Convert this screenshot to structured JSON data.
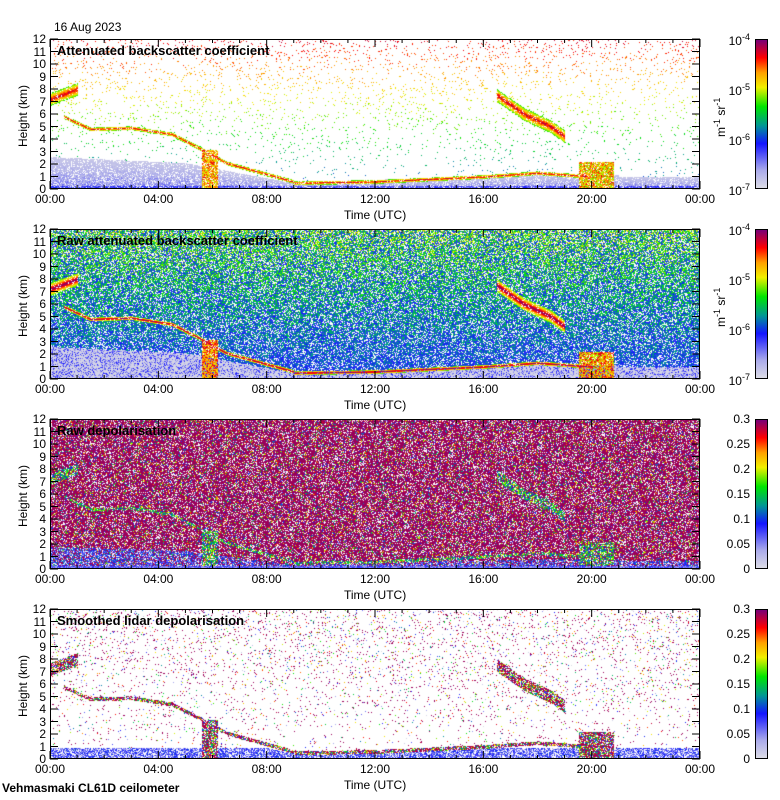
{
  "date": "16 Aug 2023",
  "footer": "Vehmasmaki CL61D ceilometer",
  "colors": {
    "frame": "#000000"
  },
  "chart_data": [
    {
      "type": "heatmap",
      "title": "Attenuated backscatter coefficient",
      "xlabel": "Time (UTC)",
      "ylabel": "Height (km)",
      "x_ticks": [
        "00:00",
        "04:00",
        "08:00",
        "12:00",
        "16:00",
        "20:00",
        "00:00"
      ],
      "xlim_hours": [
        0,
        24
      ],
      "y_ticks": [
        "0",
        "1",
        "2",
        "3",
        "4",
        "5",
        "6",
        "7",
        "8",
        "9",
        "10",
        "11",
        "12"
      ],
      "ylim": [
        0,
        12
      ],
      "colorbar": {
        "scale": "log",
        "range": [
          1e-07,
          0.0001
        ],
        "ticks": [
          {
            "base": "10",
            "exp": "-4"
          },
          {
            "base": "10",
            "exp": "-5"
          },
          {
            "base": "10",
            "exp": "-6"
          },
          {
            "base": "10",
            "exp": "-7"
          }
        ],
        "unit_base1": "m",
        "unit_exp1": "-1",
        "unit_base2": " sr",
        "unit_exp2": "-1"
      },
      "mode": "backscatter",
      "noise": 0.04
    },
    {
      "type": "heatmap",
      "title": "Raw attenuated backscatter coefficient",
      "xlabel": "Time (UTC)",
      "ylabel": "Height (km)",
      "x_ticks": [
        "00:00",
        "04:00",
        "08:00",
        "12:00",
        "16:00",
        "20:00",
        "00:00"
      ],
      "xlim_hours": [
        0,
        24
      ],
      "y_ticks": [
        "0",
        "1",
        "2",
        "3",
        "4",
        "5",
        "6",
        "7",
        "8",
        "9",
        "10",
        "11",
        "12"
      ],
      "ylim": [
        0,
        12
      ],
      "colorbar": {
        "scale": "log",
        "range": [
          1e-07,
          0.0001
        ],
        "ticks": [
          {
            "base": "10",
            "exp": "-4"
          },
          {
            "base": "10",
            "exp": "-5"
          },
          {
            "base": "10",
            "exp": "-6"
          },
          {
            "base": "10",
            "exp": "-7"
          }
        ],
        "unit_base1": "m",
        "unit_exp1": "-1",
        "unit_base2": " sr",
        "unit_exp2": "-1"
      },
      "mode": "raw",
      "noise": 0.75
    },
    {
      "type": "heatmap",
      "title": "Raw depolarisation",
      "xlabel": "Time (UTC)",
      "ylabel": "Height (km)",
      "x_ticks": [
        "00:00",
        "04:00",
        "08:00",
        "12:00",
        "16:00",
        "20:00",
        "00:00"
      ],
      "xlim_hours": [
        0,
        24
      ],
      "y_ticks": [
        "0",
        "1",
        "2",
        "3",
        "4",
        "5",
        "6",
        "7",
        "8",
        "9",
        "10",
        "11",
        "12"
      ],
      "ylim": [
        0,
        12
      ],
      "colorbar": {
        "scale": "linear",
        "range": [
          0,
          0.3
        ],
        "ticks": [
          "0.3",
          "0.25",
          "0.2",
          "0.15",
          "0.1",
          "0.05",
          "0"
        ]
      },
      "mode": "depol",
      "noise": 0.85
    },
    {
      "type": "heatmap",
      "title": "Smoothed lidar depolarisation",
      "xlabel": "Time (UTC)",
      "ylabel": "Height (km)",
      "x_ticks": [
        "00:00",
        "04:00",
        "08:00",
        "12:00",
        "16:00",
        "20:00",
        "00:00"
      ],
      "xlim_hours": [
        0,
        24
      ],
      "y_ticks": [
        "0",
        "1",
        "2",
        "3",
        "4",
        "5",
        "6",
        "7",
        "8",
        "9",
        "10",
        "11",
        "12"
      ],
      "ylim": [
        0,
        12
      ],
      "colorbar": {
        "scale": "linear",
        "range": [
          0,
          0.3
        ],
        "ticks": [
          "0.3",
          "0.25",
          "0.2",
          "0.15",
          "0.1",
          "0.05",
          "0"
        ]
      },
      "mode": "sdepol",
      "noise": 0.06
    }
  ],
  "features": {
    "cloud_layer_descending": {
      "time_h": [
        0.5,
        1.5,
        3,
        4.5,
        5.5,
        6.5,
        8,
        9
      ],
      "height_km": [
        5.8,
        4.8,
        4.9,
        4.4,
        3.3,
        2.1,
        1.2,
        0.6
      ]
    },
    "upper_cloud": {
      "time_h": [
        0,
        1
      ],
      "height_km": [
        7.2,
        8.0
      ]
    },
    "low_layer": {
      "time_h": [
        9,
        12,
        16,
        18,
        20
      ],
      "height_km": [
        0.5,
        0.6,
        1.0,
        1.3,
        1.0
      ]
    },
    "evening_cloud": {
      "time_h": [
        16.5,
        17.5,
        18.5,
        19
      ],
      "height_km": [
        7.5,
        6.0,
        5.0,
        4.2
      ]
    }
  }
}
